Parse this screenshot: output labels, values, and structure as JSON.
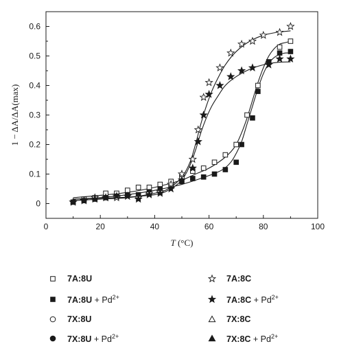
{
  "chart_data": {
    "type": "scatter",
    "xlabel_italic": "T",
    "xlabel_rest": " (°C)",
    "ylabel": "1 − ΔA/ΔA(max)",
    "xlim": [
      0,
      100
    ],
    "ylim": [
      -0.05,
      0.65
    ],
    "xticks": [
      0,
      20,
      40,
      60,
      80,
      100
    ],
    "yticks": [
      0,
      0.1,
      0.2,
      0.3,
      0.4,
      0.5,
      0.6
    ],
    "xtick_labels": [
      "0",
      "20",
      "40",
      "60",
      "80",
      "100"
    ],
    "ytick_labels": [
      "0",
      "0.1",
      "0.2",
      "0.3",
      "0.4",
      "0.5",
      "0.6"
    ],
    "grid": false,
    "legend_position": "bottom",
    "series": [
      {
        "name": "7A:8U",
        "marker": "square-open",
        "points": [
          [
            10,
            0.005
          ],
          [
            14,
            0.015
          ],
          [
            18,
            0.02
          ],
          [
            22,
            0.035
          ],
          [
            26,
            0.035
          ],
          [
            30,
            0.045
          ],
          [
            34,
            0.055
          ],
          [
            38,
            0.055
          ],
          [
            42,
            0.065
          ],
          [
            46,
            0.075
          ],
          [
            50,
            0.09
          ],
          [
            54,
            0.11
          ],
          [
            58,
            0.12
          ],
          [
            62,
            0.14
          ],
          [
            66,
            0.165
          ],
          [
            70,
            0.2
          ],
          [
            74,
            0.3
          ],
          [
            78,
            0.4
          ],
          [
            82,
            0.48
          ],
          [
            86,
            0.53
          ],
          [
            90,
            0.55
          ]
        ],
        "fit": [
          [
            10,
            0.02
          ],
          [
            20,
            0.028
          ],
          [
            30,
            0.038
          ],
          [
            40,
            0.055
          ],
          [
            50,
            0.08
          ],
          [
            55,
            0.1
          ],
          [
            60,
            0.12
          ],
          [
            65,
            0.15
          ],
          [
            68,
            0.175
          ],
          [
            70,
            0.2
          ],
          [
            72,
            0.24
          ],
          [
            74,
            0.29
          ],
          [
            76,
            0.35
          ],
          [
            78,
            0.41
          ],
          [
            80,
            0.46
          ],
          [
            82,
            0.5
          ],
          [
            84,
            0.525
          ],
          [
            86,
            0.54
          ],
          [
            88,
            0.545
          ],
          [
            90,
            0.55
          ]
        ]
      },
      {
        "name": "7A:8U",
        "suffix": " + Pd2+",
        "marker": "square-filled",
        "points": [
          [
            10,
            0.005
          ],
          [
            14,
            0.01
          ],
          [
            18,
            0.015
          ],
          [
            22,
            0.02
          ],
          [
            26,
            0.025
          ],
          [
            30,
            0.03
          ],
          [
            34,
            0.03
          ],
          [
            38,
            0.04
          ],
          [
            42,
            0.05
          ],
          [
            46,
            0.06
          ],
          [
            50,
            0.075
          ],
          [
            54,
            0.085
          ],
          [
            58,
            0.09
          ],
          [
            62,
            0.1
          ],
          [
            66,
            0.115
          ],
          [
            70,
            0.14
          ],
          [
            72,
            0.2
          ],
          [
            76,
            0.29
          ],
          [
            78,
            0.38
          ],
          [
            82,
            0.48
          ],
          [
            86,
            0.51
          ],
          [
            90,
            0.515
          ]
        ],
        "fit": [
          [
            10,
            0.015
          ],
          [
            20,
            0.02
          ],
          [
            30,
            0.03
          ],
          [
            40,
            0.045
          ],
          [
            50,
            0.065
          ],
          [
            60,
            0.095
          ],
          [
            65,
            0.115
          ],
          [
            68,
            0.14
          ],
          [
            70,
            0.17
          ],
          [
            72,
            0.21
          ],
          [
            74,
            0.27
          ],
          [
            76,
            0.33
          ],
          [
            78,
            0.39
          ],
          [
            80,
            0.44
          ],
          [
            82,
            0.475
          ],
          [
            84,
            0.495
          ],
          [
            86,
            0.505
          ],
          [
            88,
            0.51
          ],
          [
            90,
            0.51
          ]
        ]
      },
      {
        "name": "7A:8C",
        "marker": "star-open",
        "points": [
          [
            10,
            0.005
          ],
          [
            14,
            0.01
          ],
          [
            18,
            0.02
          ],
          [
            22,
            0.02
          ],
          [
            26,
            0.02
          ],
          [
            30,
            0.025
          ],
          [
            34,
            0.02
          ],
          [
            38,
            0.035
          ],
          [
            42,
            0.04
          ],
          [
            46,
            0.065
          ],
          [
            50,
            0.1
          ],
          [
            54,
            0.15
          ],
          [
            56,
            0.25
          ],
          [
            58,
            0.36
          ],
          [
            60,
            0.41
          ],
          [
            64,
            0.46
          ],
          [
            68,
            0.51
          ],
          [
            72,
            0.54
          ],
          [
            76,
            0.55
          ],
          [
            80,
            0.57
          ],
          [
            86,
            0.58
          ],
          [
            90,
            0.6
          ]
        ],
        "fit": [
          [
            10,
            0.01
          ],
          [
            20,
            0.015
          ],
          [
            30,
            0.02
          ],
          [
            40,
            0.035
          ],
          [
            45,
            0.05
          ],
          [
            50,
            0.09
          ],
          [
            53,
            0.14
          ],
          [
            55,
            0.2
          ],
          [
            57,
            0.27
          ],
          [
            59,
            0.33
          ],
          [
            61,
            0.38
          ],
          [
            63,
            0.42
          ],
          [
            66,
            0.47
          ],
          [
            70,
            0.515
          ],
          [
            75,
            0.55
          ],
          [
            80,
            0.57
          ],
          [
            85,
            0.58
          ],
          [
            90,
            0.585
          ]
        ]
      },
      {
        "name": "7A:8C",
        "suffix": " + Pd2+",
        "marker": "star-filled",
        "points": [
          [
            10,
            0.005
          ],
          [
            14,
            0.01
          ],
          [
            18,
            0.015
          ],
          [
            22,
            0.02
          ],
          [
            26,
            0.025
          ],
          [
            30,
            0.025
          ],
          [
            34,
            0.015
          ],
          [
            38,
            0.03
          ],
          [
            42,
            0.035
          ],
          [
            46,
            0.05
          ],
          [
            50,
            0.08
          ],
          [
            54,
            0.12
          ],
          [
            56,
            0.21
          ],
          [
            58,
            0.3
          ],
          [
            60,
            0.37
          ],
          [
            64,
            0.4
          ],
          [
            68,
            0.43
          ],
          [
            72,
            0.45
          ],
          [
            76,
            0.46
          ],
          [
            82,
            0.47
          ],
          [
            86,
            0.49
          ],
          [
            90,
            0.49
          ]
        ],
        "fit": [
          [
            10,
            0.015
          ],
          [
            20,
            0.018
          ],
          [
            30,
            0.022
          ],
          [
            40,
            0.03
          ],
          [
            45,
            0.045
          ],
          [
            50,
            0.08
          ],
          [
            53,
            0.13
          ],
          [
            55,
            0.18
          ],
          [
            57,
            0.24
          ],
          [
            59,
            0.29
          ],
          [
            61,
            0.33
          ],
          [
            63,
            0.36
          ],
          [
            66,
            0.4
          ],
          [
            70,
            0.43
          ],
          [
            75,
            0.455
          ],
          [
            80,
            0.47
          ],
          [
            85,
            0.478
          ],
          [
            90,
            0.48
          ]
        ]
      }
    ],
    "legend": [
      {
        "name": "7A:8U",
        "marker": "square-open"
      },
      {
        "name": "7A:8C",
        "marker": "star-open"
      },
      {
        "name": "7A:8U",
        "suffix": " + Pd2+",
        "marker": "square-filled"
      },
      {
        "name": "7A:8C",
        "suffix": " + Pd2+",
        "marker": "star-filled"
      },
      {
        "name": "7X:8U",
        "marker": "circle-open"
      },
      {
        "name": "7X:8C",
        "marker": "triangle-open"
      },
      {
        "name": "7X:8U",
        "suffix": " + Pd2+",
        "marker": "circle-filled"
      },
      {
        "name": "7X:8C",
        "suffix": " + Pd2+",
        "marker": "triangle-filled"
      }
    ],
    "colors": {
      "ink": "#1a1a1a",
      "background": "#ffffff"
    }
  }
}
